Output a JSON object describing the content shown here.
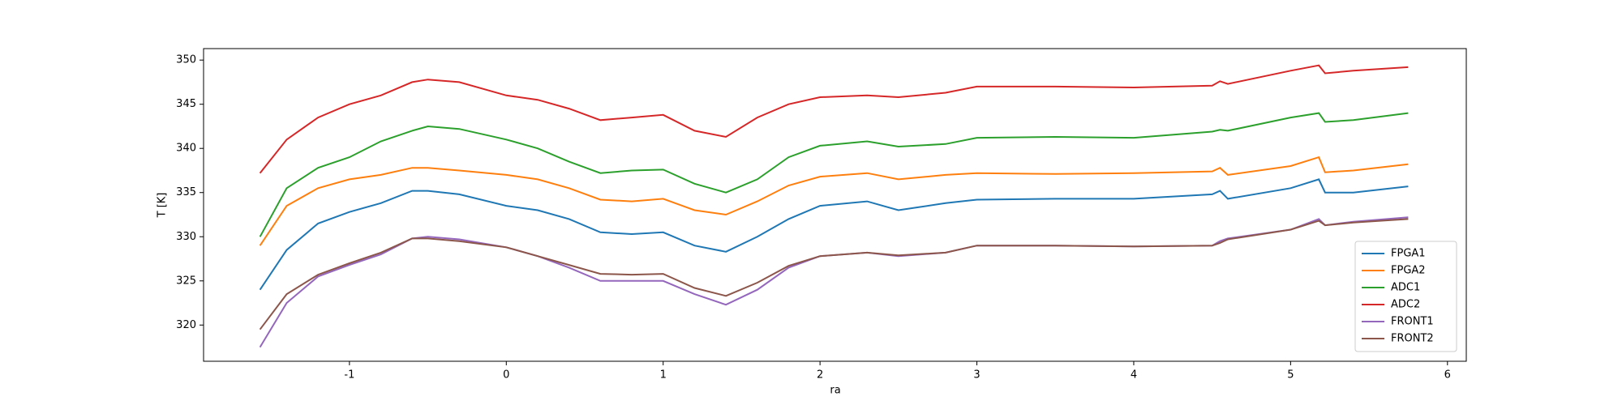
{
  "chart_data": {
    "type": "line",
    "xlabel": "ra",
    "ylabel": "T [K]",
    "x": [
      -1.57,
      -1.4,
      -1.2,
      -1.0,
      -0.8,
      -0.6,
      -0.5,
      -0.3,
      0,
      0.2,
      0.4,
      0.6,
      0.8,
      1.0,
      1.2,
      1.4,
      1.6,
      1.8,
      2.0,
      2.3,
      2.5,
      2.8,
      3.0,
      3.5,
      4.0,
      4.5,
      4.55,
      4.6,
      5.0,
      5.18,
      5.22,
      5.4,
      5.75
    ],
    "series": [
      {
        "name": "FPGA1",
        "color": "#1f77b4",
        "values": [
          324,
          328.5,
          331.5,
          332.8,
          333.8,
          335.2,
          335.2,
          334.8,
          333.5,
          333,
          332,
          330.5,
          330.3,
          330.5,
          329,
          328.3,
          330,
          332,
          333.5,
          334,
          333,
          333.8,
          334.2,
          334.3,
          334.3,
          334.8,
          335.2,
          334.3,
          335.5,
          336.5,
          335,
          335,
          335.7
        ]
      },
      {
        "name": "FPGA2",
        "color": "#ff7f0e",
        "values": [
          329,
          333.5,
          335.5,
          336.5,
          337,
          337.8,
          337.8,
          337.5,
          337,
          336.5,
          335.5,
          334.2,
          334,
          334.3,
          333,
          332.5,
          334,
          335.8,
          336.8,
          337.2,
          336.5,
          337,
          337.2,
          337.1,
          337.2,
          337.4,
          337.8,
          337,
          338,
          339,
          337.3,
          337.5,
          338.2
        ]
      },
      {
        "name": "ADC1",
        "color": "#2ca02c",
        "values": [
          330,
          335.5,
          337.8,
          339,
          340.8,
          342,
          342.5,
          342.2,
          341,
          340,
          338.5,
          337.2,
          337.5,
          337.6,
          336,
          335,
          336.5,
          339,
          340.3,
          340.8,
          340.2,
          340.5,
          341.2,
          341.3,
          341.2,
          341.9,
          342.1,
          342,
          343.5,
          344,
          343,
          343.2,
          344
        ]
      },
      {
        "name": "ADC2",
        "color": "#d62728",
        "values": [
          337.2,
          341,
          343.5,
          345,
          346,
          347.5,
          347.8,
          347.5,
          346,
          345.5,
          344.5,
          343.2,
          343.5,
          343.8,
          342,
          341.3,
          343.5,
          345,
          345.8,
          346,
          345.8,
          346.3,
          347,
          347,
          346.9,
          347.1,
          347.6,
          347.3,
          348.8,
          349.4,
          348.5,
          348.8,
          349.2
        ]
      },
      {
        "name": "FRONT1",
        "color": "#9467bd",
        "values": [
          317.5,
          322.5,
          325.5,
          326.8,
          328,
          329.8,
          330,
          329.7,
          328.8,
          327.8,
          326.5,
          325,
          325,
          325,
          323.5,
          322.3,
          324,
          326.5,
          327.8,
          328.2,
          327.8,
          328.2,
          329,
          329,
          328.9,
          329,
          329.5,
          329.8,
          330.8,
          332,
          331.3,
          331.7,
          332.2
        ]
      },
      {
        "name": "FRONT2",
        "color": "#8c564b",
        "values": [
          319.5,
          323.5,
          325.7,
          327,
          328.2,
          329.8,
          329.8,
          329.5,
          328.8,
          327.8,
          326.8,
          325.8,
          325.7,
          325.8,
          324.2,
          323.3,
          324.8,
          326.7,
          327.8,
          328.2,
          327.9,
          328.2,
          329,
          329,
          328.9,
          329,
          329.3,
          329.7,
          330.8,
          331.8,
          331.3,
          331.6,
          332
        ]
      }
    ],
    "xlim": [
      -1.93,
      6.12
    ],
    "ylim": [
      315.9,
      351.3
    ],
    "xticks": [
      -1,
      0,
      1,
      2,
      3,
      4,
      5,
      6
    ],
    "yticks": [
      320,
      325,
      330,
      335,
      340,
      345,
      350
    ],
    "grid": false,
    "legend": "lower right"
  }
}
